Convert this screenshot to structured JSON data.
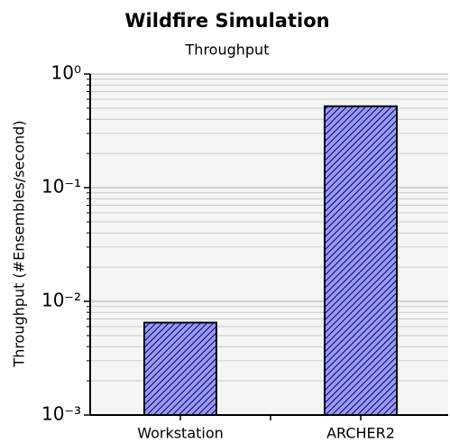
{
  "chart_data": {
    "type": "bar",
    "title": "Wildfire Simulation",
    "subtitle": "Throughput",
    "ylabel": "Throughput (#Ensembles/second)",
    "categories": [
      "Workstation",
      "ARCHER2"
    ],
    "values": [
      0.0065,
      0.52
    ],
    "color": "#9a9aee",
    "hatch_color": "#00007a",
    "log_y": true,
    "grid": true,
    "ylim": [
      0.001,
      1
    ],
    "yticks": [
      {
        "value": 0.001,
        "label": "10⁻³"
      },
      {
        "value": 0.01,
        "label": "10⁻²"
      },
      {
        "value": 0.1,
        "label": "10⁻¹"
      },
      {
        "value": 1,
        "label": "10⁰"
      }
    ],
    "yminorticks": [
      0.002,
      0.003,
      0.004,
      0.005,
      0.006,
      0.007,
      0.008,
      0.009,
      0.02,
      0.03,
      0.04,
      0.05,
      0.06,
      0.07,
      0.08,
      0.09,
      0.2,
      0.3,
      0.4,
      0.5,
      0.6,
      0.7,
      0.8,
      0.9
    ]
  }
}
